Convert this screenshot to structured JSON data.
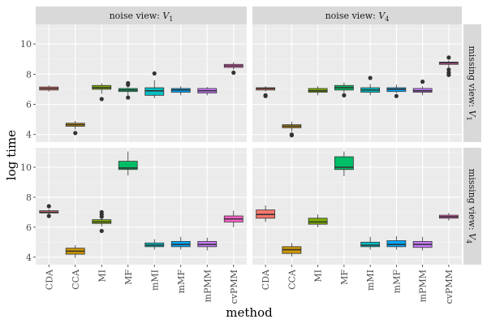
{
  "chart_data": {
    "type": "boxplot",
    "xlabel": "method",
    "ylabel": "log time",
    "ylim": [
      3.5,
      11.3
    ],
    "y_ticks": [
      4,
      6,
      8,
      10
    ],
    "categories": [
      "CDA",
      "CCA",
      "MI",
      "MF",
      "mMI",
      "mMF",
      "mPMM",
      "cvPMM"
    ],
    "colors": [
      "#f8766d",
      "#cd9600",
      "#7cae00",
      "#00be67",
      "#00bfc4",
      "#00a9ff",
      "#c77cff",
      "#ff61cc"
    ],
    "columns": [
      "noise view: V_1",
      "noise view: V_4"
    ],
    "rows": [
      "missing view: V_1",
      "missing view: V_4"
    ],
    "panels": [
      {
        "row": 0,
        "col": 0,
        "boxes": [
          {
            "category": "CDA",
            "min": 6.85,
            "q1": 6.95,
            "median": 7.05,
            "q3": 7.15,
            "max": 7.25,
            "outliers": []
          },
          {
            "category": "CCA",
            "min": 4.35,
            "q1": 4.55,
            "median": 4.65,
            "q3": 4.75,
            "max": 4.9,
            "outliers": [
              4.1
            ]
          },
          {
            "category": "MI",
            "min": 6.7,
            "q1": 7.0,
            "median": 7.1,
            "q3": 7.25,
            "max": 7.4,
            "outliers": [
              6.35
            ]
          },
          {
            "category": "MF",
            "min": 6.6,
            "q1": 6.85,
            "median": 6.95,
            "q3": 7.05,
            "max": 7.15,
            "outliers": [
              6.45,
              7.3,
              7.4
            ]
          },
          {
            "category": "mMI",
            "min": 6.4,
            "q1": 6.6,
            "median": 6.9,
            "q3": 7.1,
            "max": 7.6,
            "outliers": [
              8.05
            ]
          },
          {
            "category": "mMF",
            "min": 6.6,
            "q1": 6.8,
            "median": 6.95,
            "q3": 7.05,
            "max": 7.2,
            "outliers": []
          },
          {
            "category": "mPMM",
            "min": 6.6,
            "q1": 6.75,
            "median": 6.9,
            "q3": 7.05,
            "max": 7.15,
            "outliers": []
          },
          {
            "category": "cvPMM",
            "min": 8.3,
            "q1": 8.45,
            "median": 8.55,
            "q3": 8.65,
            "max": 8.8,
            "outliers": [
              8.1
            ]
          }
        ]
      },
      {
        "row": 0,
        "col": 1,
        "boxes": [
          {
            "category": "CDA",
            "min": 6.85,
            "q1": 6.95,
            "median": 7.05,
            "q3": 7.1,
            "max": 7.2,
            "outliers": [
              6.6,
              6.55
            ]
          },
          {
            "category": "CCA",
            "min": 4.2,
            "q1": 4.45,
            "median": 4.55,
            "q3": 4.65,
            "max": 4.85,
            "outliers": [
              4.0,
              3.95
            ]
          },
          {
            "category": "MI",
            "min": 6.6,
            "q1": 6.8,
            "median": 6.9,
            "q3": 7.05,
            "max": 7.2,
            "outliers": []
          },
          {
            "category": "MF",
            "min": 6.75,
            "q1": 6.95,
            "median": 7.1,
            "q3": 7.25,
            "max": 7.45,
            "outliers": [
              6.6
            ]
          },
          {
            "category": "mMI",
            "min": 6.6,
            "q1": 6.8,
            "median": 6.95,
            "q3": 7.1,
            "max": 7.35,
            "outliers": [
              7.75
            ]
          },
          {
            "category": "mMF",
            "min": 6.75,
            "q1": 6.85,
            "median": 7.0,
            "q3": 7.1,
            "max": 7.3,
            "outliers": [
              6.55
            ]
          },
          {
            "category": "mPMM",
            "min": 6.6,
            "q1": 6.8,
            "median": 6.9,
            "q3": 7.05,
            "max": 7.2,
            "outliers": [
              7.5
            ]
          },
          {
            "category": "cvPMM",
            "min": 8.4,
            "q1": 8.65,
            "median": 8.75,
            "q3": 8.8,
            "max": 8.9,
            "outliers": [
              9.1,
              8.3,
              8.1,
              7.95
            ]
          }
        ]
      },
      {
        "row": 1,
        "col": 0,
        "boxes": [
          {
            "category": "CDA",
            "min": 6.85,
            "q1": 6.95,
            "median": 7.0,
            "q3": 7.1,
            "max": 7.2,
            "outliers": [
              7.4,
              6.75
            ]
          },
          {
            "category": "CCA",
            "min": 3.95,
            "q1": 4.2,
            "median": 4.4,
            "q3": 4.6,
            "max": 4.8,
            "outliers": []
          },
          {
            "category": "MI",
            "min": 6.05,
            "q1": 6.25,
            "median": 6.35,
            "q3": 6.5,
            "max": 6.7,
            "outliers": [
              7.0,
              6.85,
              6.7,
              5.75
            ]
          },
          {
            "category": "MF",
            "min": 9.45,
            "q1": 9.85,
            "median": 9.95,
            "q3": 10.4,
            "max": 11.05,
            "outliers": []
          },
          {
            "category": "mMI",
            "min": 4.5,
            "q1": 4.7,
            "median": 4.8,
            "q3": 4.95,
            "max": 5.2,
            "outliers": []
          },
          {
            "category": "mMF",
            "min": 4.5,
            "q1": 4.7,
            "median": 4.85,
            "q3": 5.05,
            "max": 5.35,
            "outliers": []
          },
          {
            "category": "mPMM",
            "min": 4.45,
            "q1": 4.7,
            "median": 4.85,
            "q3": 5.05,
            "max": 5.3,
            "outliers": []
          },
          {
            "category": "cvPMM",
            "min": 6.0,
            "q1": 6.35,
            "median": 6.55,
            "q3": 6.75,
            "max": 7.1,
            "outliers": []
          }
        ]
      },
      {
        "row": 1,
        "col": 1,
        "boxes": [
          {
            "category": "CDA",
            "min": 6.35,
            "q1": 6.6,
            "median": 6.85,
            "q3": 7.15,
            "max": 7.45,
            "outliers": []
          },
          {
            "category": "CCA",
            "min": 4.05,
            "q1": 4.25,
            "median": 4.5,
            "q3": 4.7,
            "max": 4.95,
            "outliers": []
          },
          {
            "category": "MI",
            "min": 6.0,
            "q1": 6.2,
            "median": 6.35,
            "q3": 6.6,
            "max": 6.85,
            "outliers": []
          },
          {
            "category": "MF",
            "min": 9.4,
            "q1": 9.85,
            "median": 10.0,
            "q3": 10.7,
            "max": 11.05,
            "outliers": []
          },
          {
            "category": "mMI",
            "min": 4.5,
            "q1": 4.7,
            "median": 4.8,
            "q3": 5.0,
            "max": 5.35,
            "outliers": []
          },
          {
            "category": "mMF",
            "min": 4.5,
            "q1": 4.7,
            "median": 4.85,
            "q3": 5.1,
            "max": 5.4,
            "outliers": []
          },
          {
            "category": "mPMM",
            "min": 4.45,
            "q1": 4.65,
            "median": 4.85,
            "q3": 5.05,
            "max": 5.35,
            "outliers": []
          },
          {
            "category": "cvPMM",
            "min": 6.45,
            "q1": 6.6,
            "median": 6.7,
            "q3": 6.8,
            "max": 6.95,
            "outliers": []
          }
        ]
      }
    ]
  }
}
